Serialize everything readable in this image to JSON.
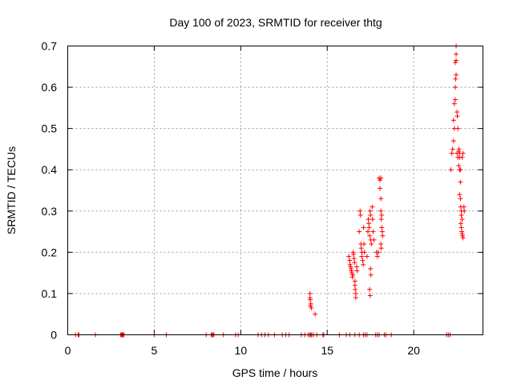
{
  "chart_data": {
    "type": "scatter",
    "title": "Day 100 of 2023, SRMTID for receiver thtg",
    "xlabel": "GPS time / hours",
    "ylabel": "SRMTID / TECUs",
    "xlim": [
      0,
      24
    ],
    "ylim": [
      0,
      0.7
    ],
    "xticks": [
      0,
      5,
      10,
      15,
      20
    ],
    "xtick_labels": [
      "0",
      "5",
      "10",
      "15",
      "20"
    ],
    "yticks": [
      0,
      0.1,
      0.2,
      0.3,
      0.4,
      0.5,
      0.6,
      0.7
    ],
    "ytick_labels": [
      "0",
      "0.1",
      "0.2",
      "0.3",
      "0.4",
      "0.5",
      "0.6",
      "0.7"
    ],
    "grid": true,
    "marker": "+",
    "marker_color": "#ff0000",
    "series": [
      {
        "name": "SRMTID",
        "points": [
          [
            0.45,
            0
          ],
          [
            0.6,
            0
          ],
          [
            0.65,
            0
          ],
          [
            1.6,
            0
          ],
          [
            3.05,
            0
          ],
          [
            3.1,
            0
          ],
          [
            3.15,
            0
          ],
          [
            3.2,
            0
          ],
          [
            3.25,
            0
          ],
          [
            5.0,
            0
          ],
          [
            5.7,
            0
          ],
          [
            8.0,
            0
          ],
          [
            8.3,
            0
          ],
          [
            8.35,
            0
          ],
          [
            8.4,
            0
          ],
          [
            8.45,
            0
          ],
          [
            9.0,
            0
          ],
          [
            9.7,
            0
          ],
          [
            9.85,
            0
          ],
          [
            11.0,
            0
          ],
          [
            11.2,
            0
          ],
          [
            11.4,
            0
          ],
          [
            11.6,
            0
          ],
          [
            11.95,
            0
          ],
          [
            12.4,
            0
          ],
          [
            12.6,
            0
          ],
          [
            12.8,
            0
          ],
          [
            13.5,
            0
          ],
          [
            13.7,
            0
          ],
          [
            13.9,
            0
          ],
          [
            14.0,
            0
          ],
          [
            14.05,
            0
          ],
          [
            14.1,
            0
          ],
          [
            14.2,
            0
          ],
          [
            14.4,
            0
          ],
          [
            14.75,
            0
          ],
          [
            14.8,
            0
          ],
          [
            15.7,
            0
          ],
          [
            16.1,
            0
          ],
          [
            16.3,
            0
          ],
          [
            16.6,
            0
          ],
          [
            16.85,
            0
          ],
          [
            17.1,
            0
          ],
          [
            17.2,
            0
          ],
          [
            17.3,
            0
          ],
          [
            17.8,
            0
          ],
          [
            17.9,
            0
          ],
          [
            18.0,
            0
          ],
          [
            18.3,
            0
          ],
          [
            18.4,
            0
          ],
          [
            18.7,
            0
          ],
          [
            21.9,
            0
          ],
          [
            22.0,
            0
          ],
          [
            22.1,
            0
          ],
          [
            14.0,
            0.1
          ],
          [
            14.0,
            0.09
          ],
          [
            14.02,
            0.085
          ],
          [
            14.05,
            0.075
          ],
          [
            14.03,
            0.07
          ],
          [
            14.08,
            0.065
          ],
          [
            14.3,
            0.05
          ],
          [
            16.25,
            0.19
          ],
          [
            16.3,
            0.18
          ],
          [
            16.32,
            0.17
          ],
          [
            16.35,
            0.165
          ],
          [
            16.38,
            0.16
          ],
          [
            16.4,
            0.155
          ],
          [
            16.42,
            0.15
          ],
          [
            16.45,
            0.14
          ],
          [
            16.48,
            0.145
          ],
          [
            16.5,
            0.2
          ],
          [
            16.52,
            0.195
          ],
          [
            16.55,
            0.185
          ],
          [
            16.58,
            0.175
          ],
          [
            16.6,
            0.13
          ],
          [
            16.6,
            0.12
          ],
          [
            16.62,
            0.11
          ],
          [
            16.65,
            0.1
          ],
          [
            16.65,
            0.09
          ],
          [
            16.7,
            0.165
          ],
          [
            16.72,
            0.155
          ],
          [
            16.85,
            0.25
          ],
          [
            16.9,
            0.3
          ],
          [
            16.92,
            0.29
          ],
          [
            16.95,
            0.22
          ],
          [
            16.97,
            0.21
          ],
          [
            17.0,
            0.2
          ],
          [
            17.0,
            0.19
          ],
          [
            17.05,
            0.18
          ],
          [
            17.08,
            0.17
          ],
          [
            17.1,
            0.26
          ],
          [
            17.12,
            0.22
          ],
          [
            17.15,
            0.2
          ],
          [
            17.3,
            0.19
          ],
          [
            17.35,
            0.25
          ],
          [
            17.38,
            0.28
          ],
          [
            17.4,
            0.27
          ],
          [
            17.42,
            0.26
          ],
          [
            17.45,
            0.24
          ],
          [
            17.48,
            0.3
          ],
          [
            17.5,
            0.29
          ],
          [
            17.52,
            0.23
          ],
          [
            17.55,
            0.22
          ],
          [
            17.5,
            0.16
          ],
          [
            17.52,
            0.145
          ],
          [
            17.45,
            0.11
          ],
          [
            17.48,
            0.095
          ],
          [
            17.6,
            0.31
          ],
          [
            17.62,
            0.28
          ],
          [
            17.65,
            0.25
          ],
          [
            17.7,
            0.23
          ],
          [
            17.85,
            0.2
          ],
          [
            17.9,
            0.19
          ],
          [
            17.95,
            0.2
          ],
          [
            18.0,
            0.38
          ],
          [
            18.05,
            0.375
          ],
          [
            18.1,
            0.38
          ],
          [
            18.05,
            0.355
          ],
          [
            18.1,
            0.33
          ],
          [
            18.1,
            0.3
          ],
          [
            18.15,
            0.29
          ],
          [
            18.12,
            0.28
          ],
          [
            18.15,
            0.26
          ],
          [
            18.18,
            0.25
          ],
          [
            18.2,
            0.24
          ],
          [
            18.1,
            0.22
          ],
          [
            18.12,
            0.21
          ],
          [
            22.15,
            0.4
          ],
          [
            22.2,
            0.44
          ],
          [
            22.25,
            0.45
          ],
          [
            22.3,
            0.47
          ],
          [
            22.35,
            0.5
          ],
          [
            22.3,
            0.52
          ],
          [
            22.35,
            0.56
          ],
          [
            22.4,
            0.57
          ],
          [
            22.4,
            0.6
          ],
          [
            22.42,
            0.62
          ],
          [
            22.45,
            0.63
          ],
          [
            22.4,
            0.66
          ],
          [
            22.45,
            0.665
          ],
          [
            22.45,
            0.68
          ],
          [
            22.45,
            0.7
          ],
          [
            22.5,
            0.54
          ],
          [
            22.52,
            0.53
          ],
          [
            22.55,
            0.5
          ],
          [
            22.5,
            0.44
          ],
          [
            22.55,
            0.43
          ],
          [
            22.6,
            0.445
          ],
          [
            22.62,
            0.45
          ],
          [
            22.65,
            0.44
          ],
          [
            22.65,
            0.43
          ],
          [
            22.6,
            0.41
          ],
          [
            22.65,
            0.4
          ],
          [
            22.7,
            0.4
          ],
          [
            22.7,
            0.37
          ],
          [
            22.65,
            0.34
          ],
          [
            22.7,
            0.33
          ],
          [
            22.72,
            0.31
          ],
          [
            22.75,
            0.3
          ],
          [
            22.75,
            0.29
          ],
          [
            22.8,
            0.28
          ],
          [
            22.72,
            0.27
          ],
          [
            22.75,
            0.26
          ],
          [
            22.78,
            0.25
          ],
          [
            22.8,
            0.245
          ],
          [
            22.82,
            0.24
          ],
          [
            22.85,
            0.235
          ],
          [
            22.8,
            0.43
          ],
          [
            22.85,
            0.44
          ],
          [
            22.9,
            0.31
          ],
          [
            22.92,
            0.3
          ]
        ]
      }
    ]
  }
}
